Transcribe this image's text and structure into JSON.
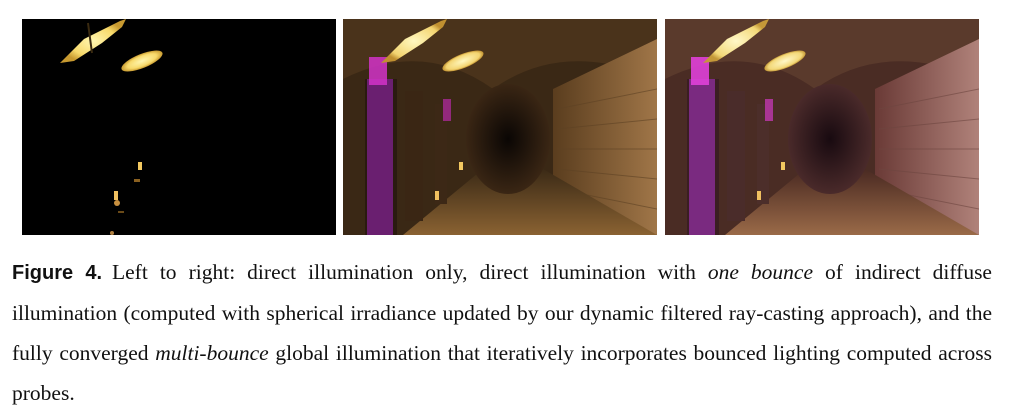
{
  "figure": {
    "panels": [
      {
        "id": "direct-only"
      },
      {
        "id": "one-bounce"
      },
      {
        "id": "multi-bounce"
      }
    ]
  },
  "caption": {
    "label": "Figure 4.",
    "part1": "Left to right:  direct illumination only, direct illumination with ",
    "emph1": "one bounce",
    "part2": " of indirect diffuse illumination (computed with spherical irradiance updated by our dynamic filtered ray-casting approach), and the fully converged ",
    "emph2": "multi-bounce",
    "part3": " global illumination that iteratively incorporates bounced lighting computed across probes."
  }
}
